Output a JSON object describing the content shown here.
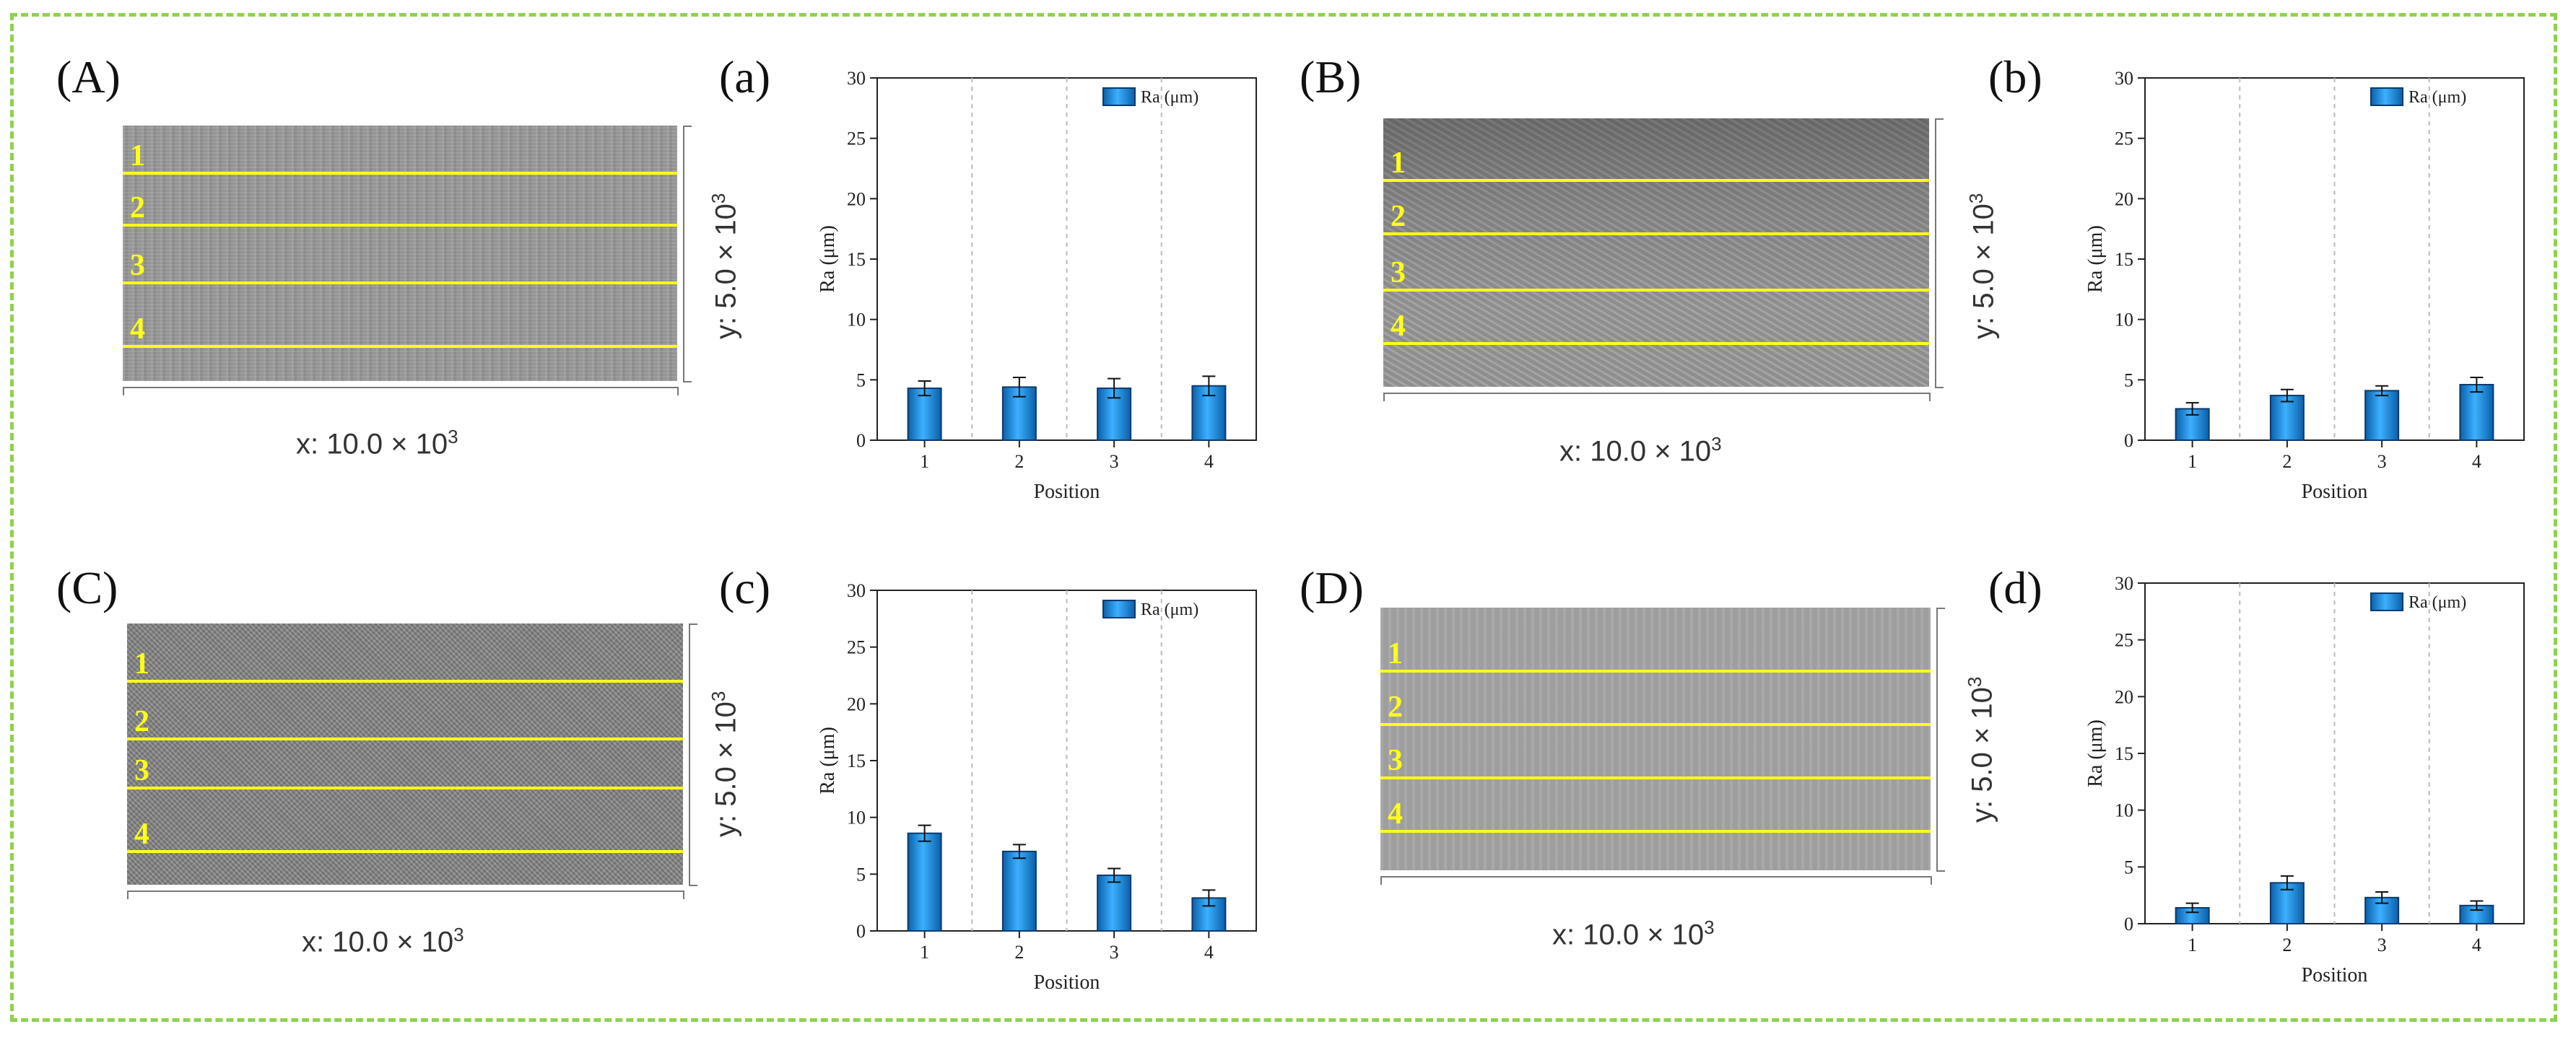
{
  "figure": {
    "frame_color": "#8fd14f",
    "scan_line_color": "#ffff1a",
    "bar_color": "#1a8fe0",
    "bar_edge_color": "#0a3a6e"
  },
  "image_panels": [
    {
      "letter": "(A)",
      "x_label": "x: 10.0 × 10",
      "x_exp": "3",
      "y_label": "y: 5.0 × 10",
      "y_exp": "3",
      "scan_labels": [
        "1",
        "2",
        "3",
        "4"
      ]
    },
    {
      "letter": "(B)",
      "x_label": "x: 10.0 × 10",
      "x_exp": "3",
      "y_label": "y: 5.0 × 10",
      "y_exp": "3",
      "scan_labels": [
        "1",
        "2",
        "3",
        "4"
      ]
    },
    {
      "letter": "(C)",
      "x_label": "x: 10.0 × 10",
      "x_exp": "3",
      "y_label": "y: 5.0 × 10",
      "y_exp": "3",
      "scan_labels": [
        "1",
        "2",
        "3",
        "4"
      ]
    },
    {
      "letter": "(D)",
      "x_label": "x: 10.0 × 10",
      "x_exp": "3",
      "y_label": "y: 5.0 × 10",
      "y_exp": "3",
      "scan_labels": [
        "1",
        "2",
        "3",
        "4"
      ]
    }
  ],
  "chart_data": [
    {
      "panel": "(a)",
      "type": "bar",
      "categories": [
        "1",
        "2",
        "3",
        "4"
      ],
      "series": [
        {
          "name": "Ra (μm)",
          "values": [
            4.3,
            4.4,
            4.3,
            4.5
          ],
          "errors": [
            0.6,
            0.8,
            0.8,
            0.8
          ]
        }
      ],
      "xlabel": "Position",
      "ylabel": "Ra (μm)",
      "ylim": [
        0,
        30
      ],
      "yticks": [
        "0",
        "5",
        "10",
        "15",
        "20",
        "25",
        "30"
      ],
      "legend": "top-right",
      "grid": "vertical dashed separators"
    },
    {
      "panel": "(b)",
      "type": "bar",
      "categories": [
        "1",
        "2",
        "3",
        "4"
      ],
      "series": [
        {
          "name": "Ra (μm)",
          "values": [
            2.6,
            3.7,
            4.1,
            4.6
          ],
          "errors": [
            0.5,
            0.5,
            0.4,
            0.6
          ]
        }
      ],
      "xlabel": "Position",
      "ylabel": "Ra (μm)",
      "ylim": [
        0,
        30
      ],
      "yticks": [
        "0",
        "5",
        "10",
        "15",
        "20",
        "25",
        "30"
      ],
      "legend": "top-right",
      "grid": "vertical dashed separators"
    },
    {
      "panel": "(c)",
      "type": "bar",
      "categories": [
        "1",
        "2",
        "3",
        "4"
      ],
      "series": [
        {
          "name": "Ra (μm)",
          "values": [
            8.6,
            7.0,
            4.9,
            2.9
          ],
          "errors": [
            0.7,
            0.6,
            0.6,
            0.7
          ]
        }
      ],
      "xlabel": "Position",
      "ylabel": "Ra (μm)",
      "ylim": [
        0,
        30
      ],
      "yticks": [
        "0",
        "5",
        "10",
        "15",
        "20",
        "25",
        "30"
      ],
      "legend": "top-right",
      "grid": "vertical dashed separators"
    },
    {
      "panel": "(d)",
      "type": "bar",
      "categories": [
        "1",
        "2",
        "3",
        "4"
      ],
      "series": [
        {
          "name": "Ra (μm)",
          "values": [
            1.4,
            3.6,
            2.3,
            1.6
          ],
          "errors": [
            0.4,
            0.6,
            0.5,
            0.4
          ]
        }
      ],
      "xlabel": "Position",
      "ylabel": "Ra (μm)",
      "ylim": [
        0,
        30
      ],
      "yticks": [
        "0",
        "5",
        "10",
        "15",
        "20",
        "25",
        "30"
      ],
      "legend": "top-right",
      "grid": "vertical dashed separators"
    }
  ]
}
